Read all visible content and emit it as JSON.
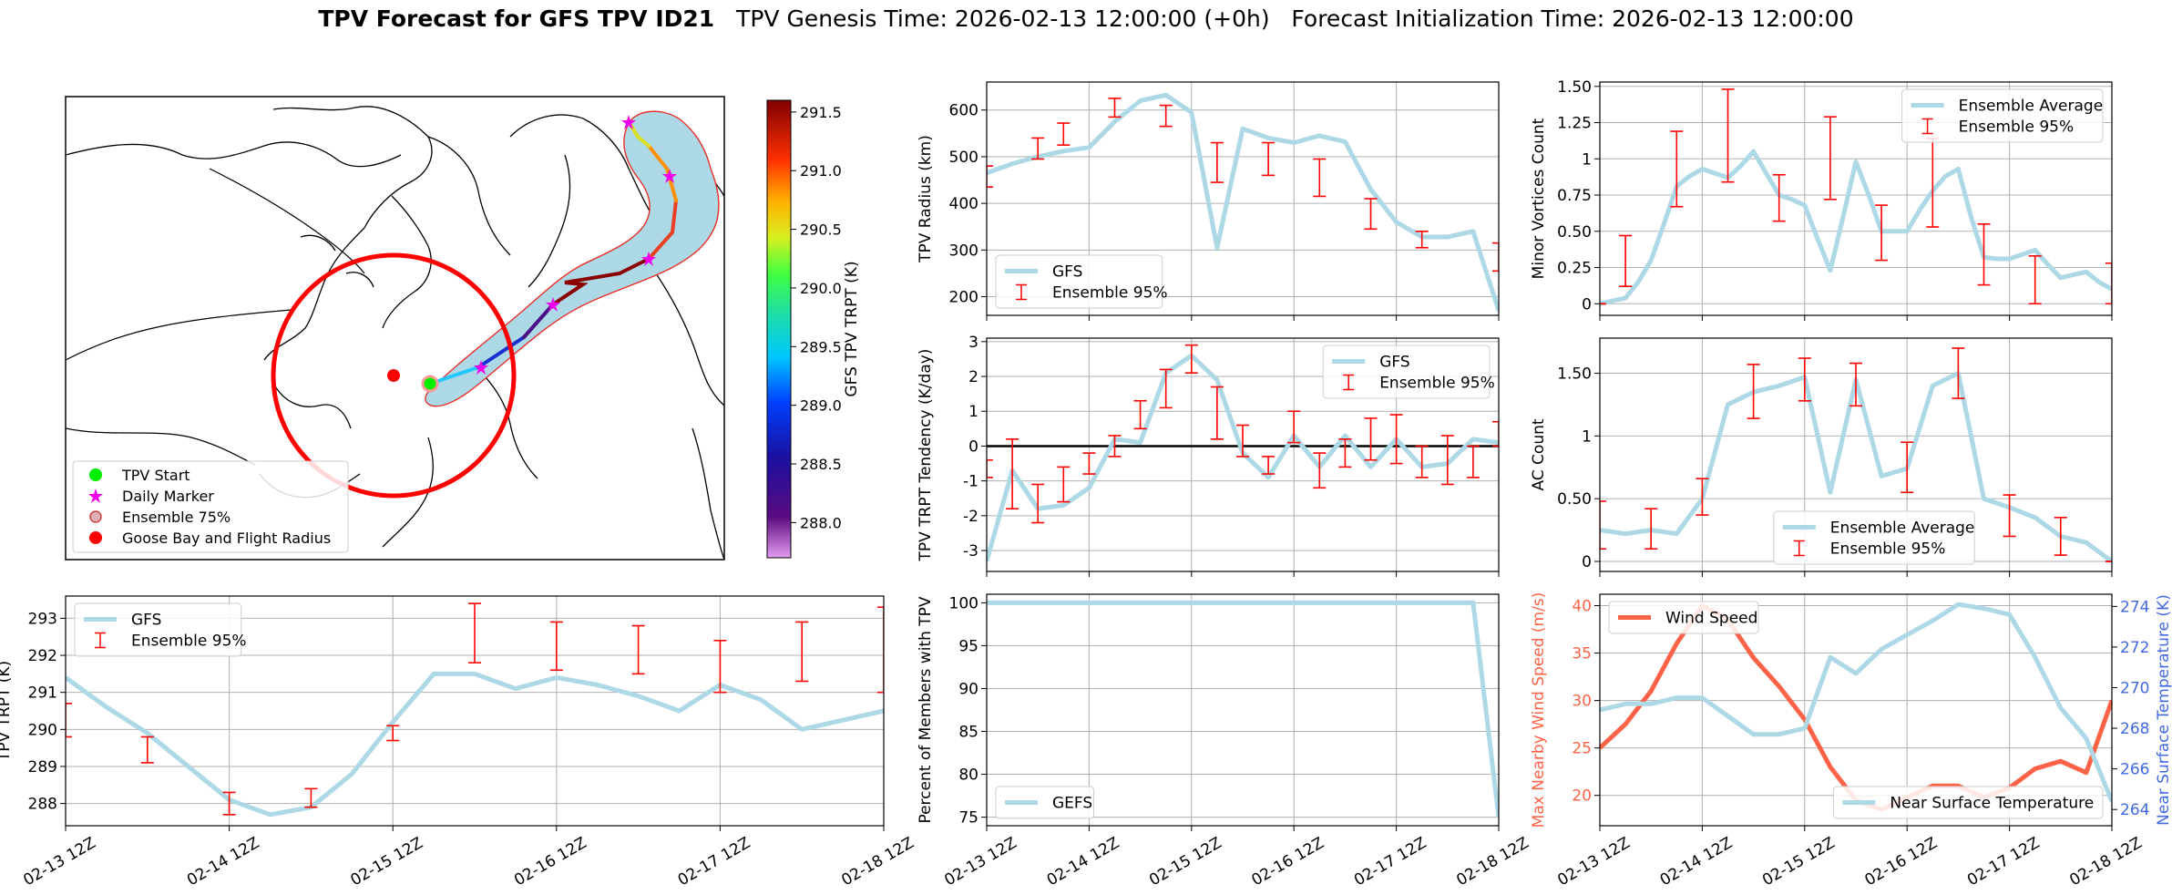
{
  "header": {
    "title_bold": "TPV Forecast for GFS TPV ID21",
    "title_rest": "   TPV Genesis Time: 2026-02-13 12:00:00 (+0h)   Forecast Initialization Time: 2026-02-13 12:00:00"
  },
  "colors": {
    "gfs_line": "#add8e6",
    "errorbar": "#ff0000",
    "wind_line": "#ff6347",
    "temp_axis": "#4169e1",
    "map_fill": "#add8e6",
    "flight_radius": "#ff0000",
    "tpv_start": "#00ee00",
    "daily_marker": "#ee00ee"
  },
  "time_ticks": [
    "02-13 12Z",
    "02-14 12Z",
    "02-15 12Z",
    "02-16 12Z",
    "02-17 12Z",
    "02-18 12Z"
  ],
  "map": {
    "type": "map",
    "colorbar_label": "GFS TPV TRPT (K)",
    "colorbar_ticks": [
      "291.5",
      "291.0",
      "290.5",
      "290.0",
      "289.5",
      "289.0",
      "288.5",
      "288.0"
    ],
    "colorbar_range": [
      287.7,
      291.6
    ],
    "legend": [
      {
        "label": "TPV Start",
        "icon": "green-dot"
      },
      {
        "label": "Daily Marker",
        "icon": "magenta-star"
      },
      {
        "label": "Ensemble 75%",
        "icon": "outlined-dot"
      },
      {
        "label": "Goose Bay and Flight Radius",
        "icon": "red-dot"
      }
    ]
  },
  "chart_data": [
    {
      "id": "trpt",
      "type": "line",
      "ylabel": "TPV TRPT (K)",
      "ylim": [
        287.4,
        293.6
      ],
      "yticks": [
        288,
        289,
        290,
        291,
        292,
        293
      ],
      "x_range": [
        0,
        5
      ],
      "legend": [
        "GFS",
        "Ensemble 95%"
      ],
      "legend_position": "upper-left",
      "series": [
        {
          "name": "GFS",
          "x": [
            0,
            0.25,
            0.5,
            0.75,
            1.0,
            1.25,
            1.5,
            1.75,
            2.0,
            2.25,
            2.5,
            2.75,
            3.0,
            3.25,
            3.5,
            3.75,
            4.0,
            4.25,
            4.5,
            5.0
          ],
          "values": [
            291.4,
            290.6,
            289.9,
            289.0,
            288.1,
            287.7,
            287.9,
            288.8,
            290.2,
            291.5,
            291.5,
            291.1,
            291.4,
            291.2,
            290.9,
            290.5,
            291.2,
            290.8,
            290.0,
            290.5
          ]
        }
      ],
      "errorbars": [
        {
          "x": 0.0,
          "low": 289.8,
          "high": 290.7
        },
        {
          "x": 0.5,
          "low": 289.1,
          "high": 289.8
        },
        {
          "x": 1.0,
          "low": 287.7,
          "high": 288.3
        },
        {
          "x": 1.5,
          "low": 287.9,
          "high": 288.4
        },
        {
          "x": 2.0,
          "low": 289.7,
          "high": 290.1
        },
        {
          "x": 2.5,
          "low": 291.8,
          "high": 293.4
        },
        {
          "x": 3.0,
          "low": 291.6,
          "high": 292.9
        },
        {
          "x": 3.5,
          "low": 291.5,
          "high": 292.8
        },
        {
          "x": 4.0,
          "low": 291.0,
          "high": 292.4
        },
        {
          "x": 4.5,
          "low": 291.3,
          "high": 292.9
        },
        {
          "x": 5.0,
          "low": 291.0,
          "high": 293.3
        }
      ]
    },
    {
      "id": "radius",
      "type": "line",
      "ylabel": "TPV Radius (km)",
      "ylim": [
        160,
        660
      ],
      "yticks": [
        200,
        300,
        400,
        500,
        600
      ],
      "x_range": [
        0,
        5
      ],
      "legend": [
        "GFS",
        "Ensemble 95%"
      ],
      "legend_position": "lower-left",
      "series": [
        {
          "name": "GFS",
          "x": [
            0,
            0.25,
            0.5,
            0.75,
            1.0,
            1.25,
            1.5,
            1.75,
            2.0,
            2.25,
            2.5,
            2.75,
            3.0,
            3.25,
            3.5,
            3.75,
            4.0,
            4.25,
            4.5,
            4.75,
            5.0
          ],
          "values": [
            465,
            485,
            500,
            512,
            520,
            575,
            620,
            632,
            595,
            305,
            560,
            540,
            530,
            545,
            532,
            430,
            360,
            328,
            328,
            340,
            170
          ]
        }
      ],
      "errorbars": [
        {
          "x": 0.0,
          "low": 435,
          "high": 480
        },
        {
          "x": 0.5,
          "low": 495,
          "high": 540
        },
        {
          "x": 0.75,
          "low": 525,
          "high": 572
        },
        {
          "x": 1.25,
          "low": 585,
          "high": 625
        },
        {
          "x": 1.75,
          "low": 565,
          "high": 610
        },
        {
          "x": 2.25,
          "low": 445,
          "high": 530
        },
        {
          "x": 2.75,
          "low": 460,
          "high": 530
        },
        {
          "x": 3.25,
          "low": 415,
          "high": 495
        },
        {
          "x": 3.75,
          "low": 345,
          "high": 410
        },
        {
          "x": 4.25,
          "low": 305,
          "high": 340
        },
        {
          "x": 5.0,
          "low": 255,
          "high": 315
        }
      ]
    },
    {
      "id": "tendency",
      "type": "line",
      "ylabel": "TPV TRPT Tendency (K/day)",
      "ylim": [
        -3.6,
        3.1
      ],
      "yticks": [
        -3,
        -2,
        -1,
        0,
        1,
        2,
        3
      ],
      "zero_line": true,
      "x_range": [
        0,
        5
      ],
      "legend": [
        "GFS",
        "Ensemble 95%"
      ],
      "legend_position": "upper-right",
      "series": [
        {
          "name": "GFS",
          "x": [
            0,
            0.25,
            0.5,
            0.75,
            1.0,
            1.25,
            1.5,
            1.75,
            2.0,
            2.25,
            2.5,
            2.75,
            3.0,
            3.25,
            3.5,
            3.75,
            4.0,
            4.25,
            4.5,
            4.75,
            5.0
          ],
          "values": [
            -3.3,
            -0.7,
            -1.8,
            -1.7,
            -1.2,
            0.2,
            0.1,
            2.1,
            2.6,
            1.9,
            -0.2,
            -0.9,
            0.3,
            -0.6,
            0.3,
            -0.6,
            0.2,
            -0.6,
            -0.5,
            0.2,
            0.1
          ]
        }
      ],
      "errorbars": [
        {
          "x": 0.0,
          "low": -0.9,
          "high": -0.4
        },
        {
          "x": 0.25,
          "low": -1.8,
          "high": 0.2
        },
        {
          "x": 0.5,
          "low": -2.2,
          "high": -1.1
        },
        {
          "x": 0.75,
          "low": -1.6,
          "high": -0.6
        },
        {
          "x": 1.0,
          "low": -0.8,
          "high": -0.2
        },
        {
          "x": 1.25,
          "low": -0.3,
          "high": 0.3
        },
        {
          "x": 1.5,
          "low": 0.5,
          "high": 1.3
        },
        {
          "x": 1.75,
          "low": 1.1,
          "high": 2.2
        },
        {
          "x": 2.0,
          "low": 2.1,
          "high": 2.9
        },
        {
          "x": 2.25,
          "low": 0.2,
          "high": 1.7
        },
        {
          "x": 2.5,
          "low": -0.3,
          "high": 0.6
        },
        {
          "x": 2.75,
          "low": -0.8,
          "high": -0.3
        },
        {
          "x": 3.0,
          "low": 0.1,
          "high": 1.0
        },
        {
          "x": 3.25,
          "low": -1.2,
          "high": -0.2
        },
        {
          "x": 3.5,
          "low": -0.6,
          "high": 0.2
        },
        {
          "x": 3.75,
          "low": -0.4,
          "high": 0.8
        },
        {
          "x": 4.0,
          "low": -0.5,
          "high": 0.9
        },
        {
          "x": 4.25,
          "low": -0.9,
          "high": 0.0
        },
        {
          "x": 4.5,
          "low": -1.1,
          "high": 0.3
        },
        {
          "x": 4.75,
          "low": -0.9,
          "high": 0.0
        },
        {
          "x": 5.0,
          "low": 0.0,
          "high": 0.7
        }
      ]
    },
    {
      "id": "percent",
      "type": "line",
      "ylabel": "Percent of Members with TPV",
      "ylim": [
        74,
        101
      ],
      "yticks": [
        75,
        80,
        85,
        90,
        95,
        100
      ],
      "x_range": [
        0,
        5
      ],
      "legend": [
        "GEFS"
      ],
      "legend_position": "lower-left",
      "series": [
        {
          "name": "GEFS",
          "x": [
            0,
            4.75,
            5.0
          ],
          "values": [
            100,
            100,
            75
          ]
        }
      ],
      "errorbars": []
    },
    {
      "id": "minor",
      "type": "line",
      "ylabel": "Minor Vortices Count",
      "ylim": [
        -0.08,
        1.53
      ],
      "yticks": [
        0.0,
        0.25,
        0.5,
        0.75,
        1.0,
        1.25,
        1.5
      ],
      "x_range": [
        0,
        5
      ],
      "legend": [
        "Ensemble Average",
        "Ensemble 95%"
      ],
      "legend_position": "upper-right",
      "series": [
        {
          "name": "Ensemble Average",
          "x": [
            0,
            0.125,
            0.25,
            0.375,
            0.5,
            0.625,
            0.75,
            0.875,
            1.0,
            1.125,
            1.25,
            1.375,
            1.5,
            1.625,
            1.75,
            1.875,
            2.0,
            2.125,
            2.25,
            2.375,
            2.5,
            2.625,
            2.75,
            2.875,
            3.0,
            3.125,
            3.25,
            3.375,
            3.5,
            3.625,
            3.75,
            3.875,
            4.0,
            4.125,
            4.25,
            4.375,
            4.5,
            4.625,
            4.75,
            4.875,
            5.0
          ],
          "values": [
            0.0,
            0.02,
            0.04,
            0.15,
            0.3,
            0.55,
            0.81,
            0.88,
            0.93,
            0.9,
            0.87,
            0.95,
            1.05,
            0.9,
            0.75,
            0.72,
            0.68,
            0.45,
            0.23,
            0.6,
            0.98,
            0.75,
            0.5,
            0.5,
            0.5,
            0.65,
            0.78,
            0.88,
            0.93,
            0.6,
            0.32,
            0.31,
            0.31,
            0.34,
            0.37,
            0.27,
            0.18,
            0.2,
            0.22,
            0.15,
            0.1
          ]
        }
      ],
      "errorbars": [
        {
          "x": 0.0,
          "low": 0.0,
          "high": 0.0
        },
        {
          "x": 0.25,
          "low": 0.12,
          "high": 0.47
        },
        {
          "x": 0.75,
          "low": 0.67,
          "high": 1.19
        },
        {
          "x": 1.25,
          "low": 0.84,
          "high": 1.48
        },
        {
          "x": 1.75,
          "low": 0.57,
          "high": 0.89
        },
        {
          "x": 2.25,
          "low": 0.72,
          "high": 1.29
        },
        {
          "x": 2.75,
          "low": 0.3,
          "high": 0.68
        },
        {
          "x": 3.25,
          "low": 0.53,
          "high": 1.14
        },
        {
          "x": 3.75,
          "low": 0.13,
          "high": 0.55
        },
        {
          "x": 4.25,
          "low": 0.0,
          "high": 0.33
        },
        {
          "x": 5.0,
          "low": 0.0,
          "high": 0.28
        }
      ]
    },
    {
      "id": "ac",
      "type": "line",
      "ylabel": "AC Count",
      "ylim": [
        -0.08,
        1.78
      ],
      "yticks": [
        0.0,
        0.5,
        1.0,
        1.5
      ],
      "x_range": [
        0,
        5
      ],
      "legend": [
        "Ensemble Average",
        "Ensemble 95%"
      ],
      "legend_position": "lower-center",
      "series": [
        {
          "name": "Ensemble Average",
          "x": [
            0,
            0.25,
            0.5,
            0.75,
            1.0,
            1.25,
            1.5,
            1.75,
            2.0,
            2.25,
            2.5,
            2.75,
            3.0,
            3.25,
            3.5,
            3.75,
            4.0,
            4.25,
            4.5,
            4.75,
            5.0
          ],
          "values": [
            0.25,
            0.22,
            0.25,
            0.22,
            0.5,
            1.25,
            1.35,
            1.4,
            1.47,
            0.55,
            1.45,
            0.68,
            0.74,
            1.4,
            1.5,
            0.5,
            0.43,
            0.35,
            0.2,
            0.15,
            0.0
          ]
        }
      ],
      "errorbars": [
        {
          "x": 0.0,
          "low": 0.1,
          "high": 0.48
        },
        {
          "x": 0.5,
          "low": 0.1,
          "high": 0.42
        },
        {
          "x": 1.0,
          "low": 0.37,
          "high": 0.66
        },
        {
          "x": 1.5,
          "low": 1.14,
          "high": 1.57
        },
        {
          "x": 2.0,
          "low": 1.28,
          "high": 1.62
        },
        {
          "x": 2.5,
          "low": 1.24,
          "high": 1.58
        },
        {
          "x": 3.0,
          "low": 0.55,
          "high": 0.95
        },
        {
          "x": 3.5,
          "low": 1.3,
          "high": 1.7
        },
        {
          "x": 4.0,
          "low": 0.2,
          "high": 0.53
        },
        {
          "x": 4.5,
          "low": 0.05,
          "high": 0.35
        },
        {
          "x": 5.0,
          "low": 0.0,
          "high": 0.0
        }
      ]
    },
    {
      "id": "wind",
      "type": "line",
      "ylabel": "Max Nearby Wind Speed (m/s)",
      "ylabel_right": "Near Surface Temperature (K)",
      "ylim": [
        16.8,
        41.2
      ],
      "yticks": [
        20,
        25,
        30,
        35,
        40
      ],
      "ylim_right": [
        263.2,
        274.6
      ],
      "yticks_right": [
        264,
        266,
        268,
        270,
        272,
        274
      ],
      "x_range": [
        0,
        5
      ],
      "legend": [
        "Wind Speed"
      ],
      "legend_position": "upper-left",
      "legend_right": [
        "Near Surface Temperature"
      ],
      "legend_right_position": "lower-right",
      "series": [
        {
          "name": "Wind Speed",
          "axis": "left",
          "x": [
            0,
            0.25,
            0.5,
            0.75,
            1.0,
            1.25,
            1.5,
            1.75,
            2.0,
            2.25,
            2.5,
            2.75,
            3.0,
            3.25,
            3.5,
            3.75,
            4.0,
            4.25,
            4.5,
            4.75,
            5.0
          ],
          "values": [
            25,
            27.5,
            31,
            36,
            40,
            38.5,
            34.5,
            31.5,
            28,
            23,
            19.5,
            18.5,
            19.8,
            21,
            21,
            19.8,
            20.8,
            22.8,
            23.6,
            22.4,
            30
          ]
        },
        {
          "name": "Near Surface Temperature",
          "axis": "right",
          "x": [
            0,
            0.25,
            0.5,
            0.75,
            1.0,
            1.25,
            1.5,
            1.75,
            2.0,
            2.25,
            2.5,
            2.75,
            3.0,
            3.25,
            3.5,
            3.75,
            4.0,
            4.25,
            4.5,
            4.75,
            5.0
          ],
          "values": [
            268.9,
            269.2,
            269.2,
            269.5,
            269.5,
            268.6,
            267.7,
            267.7,
            268.0,
            271.5,
            270.7,
            271.9,
            272.6,
            273.3,
            274.1,
            273.9,
            273.6,
            271.5,
            269.0,
            267.5,
            264.4
          ]
        }
      ],
      "errorbars": []
    }
  ]
}
